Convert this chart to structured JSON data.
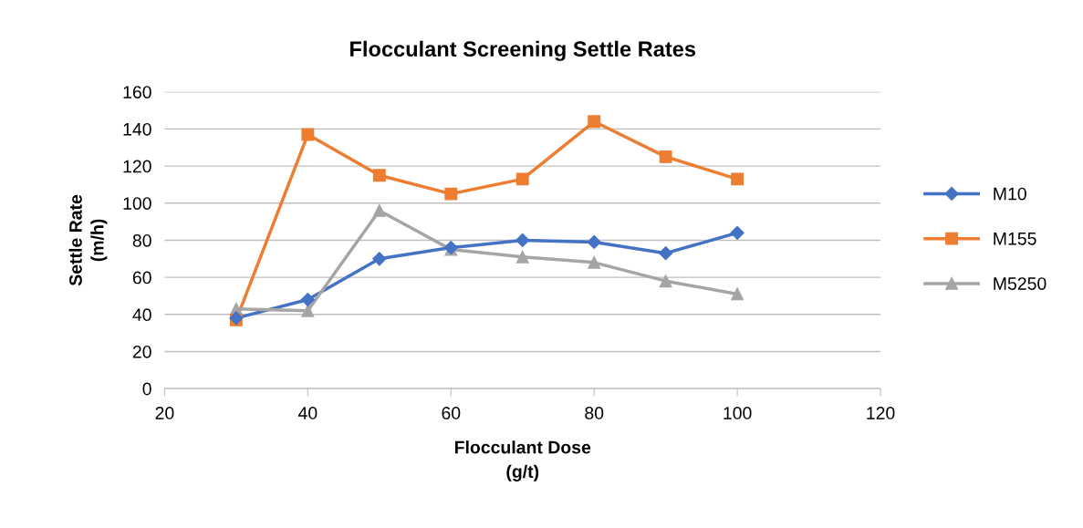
{
  "chart_data": {
    "type": "line",
    "title": "Flocculant Screening Settle Rates",
    "xlabel": "Flocculant Dose\n(g/t)",
    "ylabel": "Settle Rate\n(m/h)",
    "x": [
      30,
      40,
      50,
      60,
      70,
      80,
      90,
      100
    ],
    "series": [
      {
        "name": "M10",
        "color": "#4472c4",
        "marker": "diamond",
        "values": [
          38,
          48,
          70,
          76,
          80,
          79,
          73,
          84
        ]
      },
      {
        "name": "M155",
        "color": "#ed7d31",
        "marker": "square",
        "values": [
          37,
          137,
          115,
          105,
          113,
          144,
          125,
          113
        ]
      },
      {
        "name": "M5250",
        "color": "#a5a5a5",
        "marker": "triangle",
        "values": [
          43,
          42,
          96,
          75,
          71,
          68,
          58,
          51
        ]
      }
    ],
    "xlim": [
      20,
      120
    ],
    "xticks": [
      20,
      40,
      60,
      80,
      100,
      120
    ],
    "ylim": [
      0,
      160
    ],
    "yticks": [
      0,
      20,
      40,
      60,
      80,
      100,
      120,
      140,
      160
    ],
    "grid": "y",
    "legend": "right",
    "line_style": "solid"
  }
}
